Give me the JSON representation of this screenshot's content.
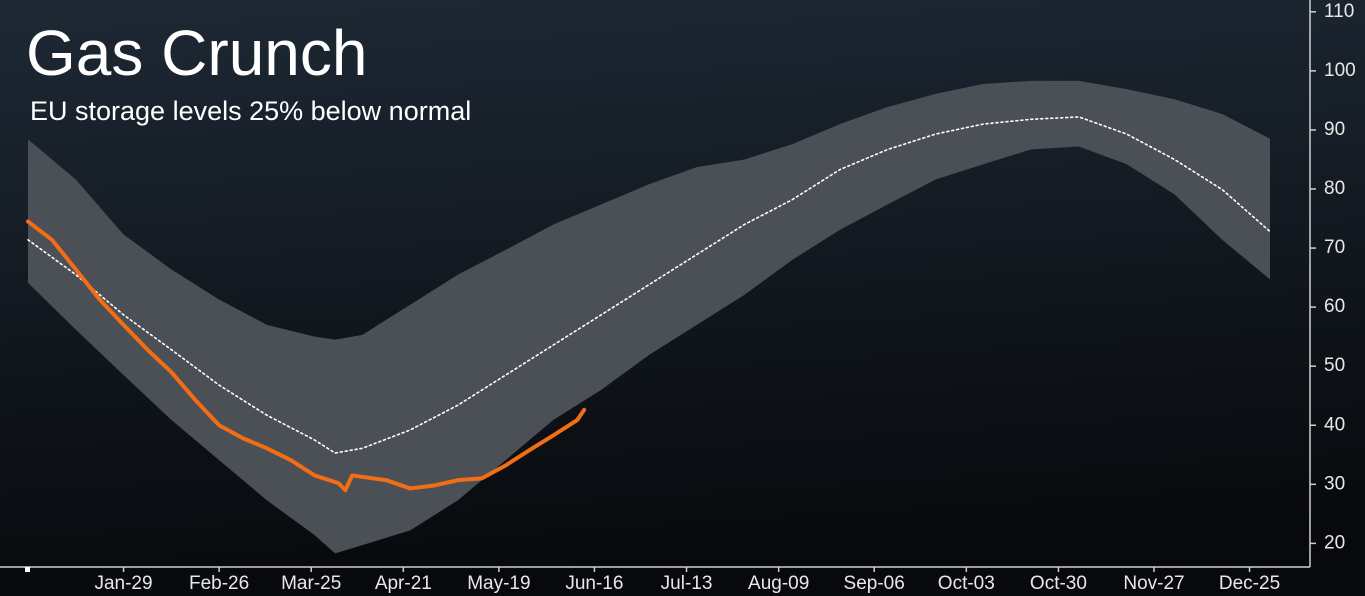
{
  "chart_data": {
    "type": "line",
    "title": "Gas Crunch",
    "subtitle": "EU storage levels 25% below normal",
    "xlim": [
      0,
      364
    ],
    "xticks": [
      {
        "value": 28,
        "label": "Jan-29"
      },
      {
        "value": 56,
        "label": "Feb-26"
      },
      {
        "value": 83,
        "label": "Mar-25"
      },
      {
        "value": 110,
        "label": "Apr-21"
      },
      {
        "value": 138,
        "label": "May-19"
      },
      {
        "value": 166,
        "label": "Jun-16"
      },
      {
        "value": 193,
        "label": "Jul-13"
      },
      {
        "value": 220,
        "label": "Aug-09"
      },
      {
        "value": 248,
        "label": "Sep-06"
      },
      {
        "value": 275,
        "label": "Oct-03"
      },
      {
        "value": 302,
        "label": "Oct-30"
      },
      {
        "value": 330,
        "label": "Nov-27"
      },
      {
        "value": 358,
        "label": "Dec-25"
      }
    ],
    "ylim": [
      16,
      112
    ],
    "yticks": [
      20,
      30,
      40,
      50,
      60,
      70,
      80,
      90,
      100,
      110
    ],
    "band": {
      "color": "#4b5057",
      "x": [
        0,
        14,
        28,
        42,
        56,
        70,
        84,
        90,
        98,
        112,
        126,
        140,
        154,
        168,
        182,
        196,
        210,
        224,
        238,
        252,
        266,
        280,
        294,
        308,
        322,
        336,
        350,
        364
      ],
      "upper": [
        88.4,
        81.6,
        72.3,
        66.4,
        61.3,
        57,
        55,
        54.5,
        55.3,
        60.4,
        65.5,
        69.7,
        74,
        77.4,
        80.8,
        83.7,
        85,
        87.6,
        91,
        93.9,
        96.1,
        97.8,
        98.3,
        98.3,
        96.9,
        95.2,
        92.7,
        88.5
      ],
      "lower": [
        64.1,
        56.2,
        48.5,
        40.9,
        34.1,
        27.3,
        21.4,
        18.3,
        19.7,
        22.2,
        27.3,
        34.1,
        40.9,
        46,
        51.9,
        57,
        62.1,
        68,
        73.1,
        77.4,
        81.6,
        84.2,
        86.7,
        87.2,
        84.2,
        79.1,
        71.4,
        64.7
      ]
    },
    "series": [
      {
        "color": "#ffffff",
        "style": "dotted",
        "x": [
          0,
          14,
          28,
          42,
          56,
          70,
          84,
          90,
          98,
          112,
          126,
          140,
          154,
          168,
          182,
          196,
          210,
          224,
          238,
          252,
          266,
          280,
          294,
          308,
          322,
          336,
          350,
          364
        ],
        "values": [
          71.4,
          65.5,
          58.7,
          52.8,
          46.8,
          41.7,
          37.5,
          35.3,
          36.1,
          39.2,
          43.4,
          48.5,
          53.6,
          58.7,
          63.8,
          68.9,
          74,
          78.2,
          83.3,
          86.7,
          89.3,
          91,
          91.8,
          92.2,
          89.3,
          85,
          79.9,
          72.8
        ]
      },
      {
        "color": "#f26d13",
        "style": "solid",
        "x": [
          0,
          7,
          14,
          21,
          28,
          35,
          42,
          49,
          56,
          63,
          70,
          77,
          84,
          91,
          93,
          95,
          105,
          112,
          119,
          126,
          133,
          140,
          147,
          154,
          161,
          163
        ],
        "values": [
          74.5,
          71.4,
          66.4,
          61.3,
          57,
          52.8,
          49,
          44.3,
          40,
          37.8,
          36.1,
          34.1,
          31.5,
          30.2,
          29,
          31.5,
          30.7,
          29.3,
          29.8,
          30.7,
          31,
          33.2,
          35.8,
          38.3,
          40.9,
          42.6
        ]
      }
    ]
  }
}
